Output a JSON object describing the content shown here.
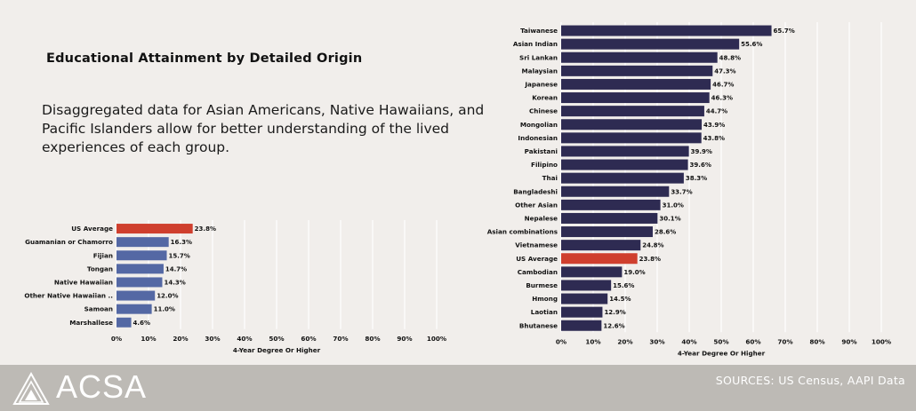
{
  "header": {
    "title": "Educational Attainment by Detailed Origin",
    "subtitle": "Disaggregated data for Asian Americans, Native Hawaiians, and Pacific Islanders allow for better understanding of the lived experiences of each group."
  },
  "footer": {
    "logo_text": "ACSA",
    "sources": "SOURCES: US Census, AAPI Data"
  },
  "colors": {
    "asian_bar": "#2e2b52",
    "nhpi_bar": "#5468a4",
    "us_average_bar": "#cf3f2e",
    "grid": "#ffffff",
    "footer_bg": "#bdbab5"
  },
  "chart_data": [
    {
      "type": "bar",
      "orientation": "horizontal",
      "categories": [
        "Taiwanese",
        "Asian Indian",
        "Sri Lankan",
        "Malaysian",
        "Japanese",
        "Korean",
        "Chinese",
        "Mongolian",
        "Indonesian",
        "Pakistani",
        "Filipino",
        "Thai",
        "Bangladeshi",
        "Other Asian",
        "Nepalese",
        "Asian combinations",
        "Vietnamese",
        "US Average",
        "Cambodian",
        "Burmese",
        "Hmong",
        "Laotian",
        "Bhutanese"
      ],
      "values": [
        65.7,
        55.6,
        48.8,
        47.3,
        46.7,
        46.3,
        44.7,
        43.9,
        43.8,
        39.9,
        39.6,
        38.3,
        33.7,
        31.0,
        30.1,
        28.6,
        24.8,
        23.8,
        19.0,
        15.6,
        14.5,
        12.9,
        12.6
      ],
      "value_labels": [
        "65.7%",
        "55.6%",
        "48.8%",
        "47.3%",
        "46.7%",
        "46.3%",
        "44.7%",
        "43.9%",
        "43.8%",
        "39.9%",
        "39.6%",
        "38.3%",
        "33.7%",
        "31.0%",
        "30.1%",
        "28.6%",
        "24.8%",
        "23.8%",
        "19.0%",
        "15.6%",
        "14.5%",
        "12.9%",
        "12.6%"
      ],
      "highlight": "US Average",
      "xlabel": "4-Year Degree Or Higher",
      "xlim": [
        0,
        100
      ],
      "xticks": [
        "0%",
        "10%",
        "20%",
        "30%",
        "40%",
        "50%",
        "60%",
        "70%",
        "80%",
        "90%",
        "100%"
      ],
      "grid": true
    },
    {
      "type": "bar",
      "orientation": "horizontal",
      "categories": [
        "US Average",
        "Guamanian or Chamorro",
        "Fijian",
        "Tongan",
        "Native Hawaiian",
        "Other Native Hawaiian ..",
        "Samoan",
        "Marshallese"
      ],
      "values": [
        23.8,
        16.3,
        15.7,
        14.7,
        14.3,
        12.0,
        11.0,
        4.6
      ],
      "value_labels": [
        "23.8%",
        "16.3%",
        "15.7%",
        "14.7%",
        "14.3%",
        "12.0%",
        "11.0%",
        "4.6%"
      ],
      "highlight": "US Average",
      "xlabel": "4-Year Degree Or Higher",
      "xlim": [
        0,
        100
      ],
      "xticks": [
        "0%",
        "10%",
        "20%",
        "30%",
        "40%",
        "50%",
        "60%",
        "70%",
        "80%",
        "90%",
        "100%"
      ],
      "grid": true
    }
  ]
}
